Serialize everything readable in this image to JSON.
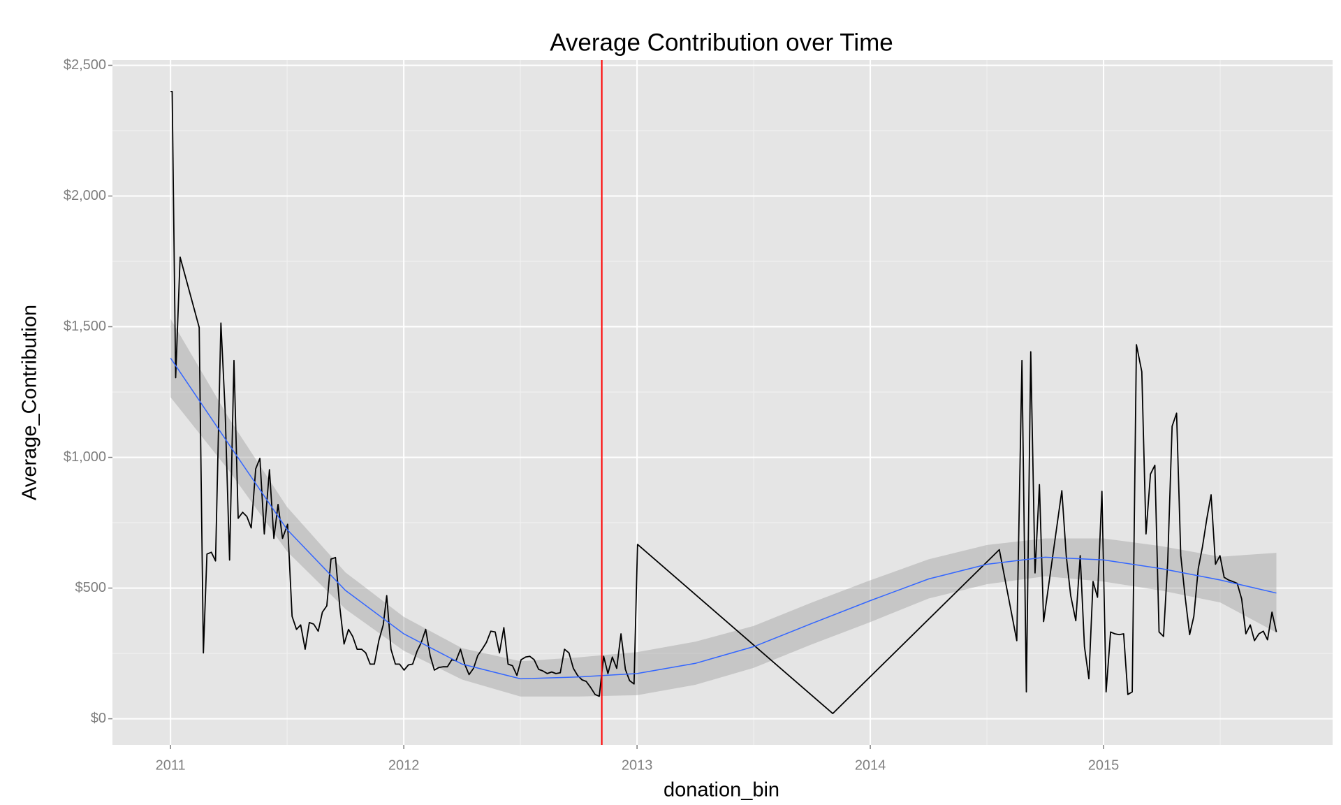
{
  "chart_data": {
    "type": "line",
    "title": "Average Contribution over Time",
    "x_label": "donation_bin",
    "y_label": "Average_Contribution",
    "xlim": [
      2010.751,
      2015.982
    ],
    "ylim": [
      -100,
      2520
    ],
    "xticks": [
      2011,
      2012,
      2013,
      2014,
      2015
    ],
    "yticks": [
      {
        "value": 0,
        "label": "$0"
      },
      {
        "value": 500,
        "label": "$500"
      },
      {
        "value": 1000,
        "label": "$1,000"
      },
      {
        "value": 1500,
        "label": "$1,500"
      },
      {
        "value": 2000,
        "label": "$2,000"
      },
      {
        "value": 2500,
        "label": "$2,500"
      }
    ],
    "xminorticks": [
      2011.5,
      2012.5,
      2013.5,
      2014.5,
      2015.5
    ],
    "yminorticks": [
      250,
      750,
      1250,
      1750,
      2250
    ],
    "grid": true,
    "panel_color": "#e5e5e5",
    "x": [
      2011.0,
      2011.007,
      2011.022,
      2011.041,
      2011.123,
      2011.141,
      2011.156,
      2011.175,
      2011.193,
      2011.216,
      2011.234,
      2011.253,
      2011.272,
      2011.29,
      2011.309,
      2011.327,
      2011.346,
      2011.365,
      2011.383,
      2011.402,
      2011.424,
      2011.443,
      2011.461,
      2011.48,
      2011.502,
      2011.521,
      2011.54,
      2011.558,
      2011.577,
      2011.595,
      2011.614,
      2011.633,
      2011.651,
      2011.67,
      2011.688,
      2011.707,
      2011.726,
      2011.744,
      2011.763,
      2011.781,
      2011.8,
      2011.819,
      2011.837,
      2011.856,
      2011.874,
      2011.893,
      2011.912,
      2011.927,
      2011.945,
      2011.964,
      2011.982,
      2012.001,
      2012.02,
      2012.038,
      2012.057,
      2012.075,
      2012.094,
      2012.113,
      2012.131,
      2012.15,
      2012.168,
      2012.187,
      2012.206,
      2012.224,
      2012.243,
      2012.261,
      2012.28,
      2012.299,
      2012.317,
      2012.336,
      2012.354,
      2012.373,
      2012.392,
      2012.41,
      2012.429,
      2012.447,
      2012.466,
      2012.485,
      2012.503,
      2012.522,
      2012.54,
      2012.559,
      2012.578,
      2012.596,
      2012.615,
      2012.634,
      2012.652,
      2012.671,
      2012.689,
      2012.708,
      2012.727,
      2012.745,
      2012.764,
      2012.782,
      2012.801,
      2012.82,
      2012.838,
      2012.857,
      2012.875,
      2012.894,
      2012.913,
      2012.931,
      2012.95,
      2012.968,
      2012.987,
      2013.002,
      2013.839,
      2014.553,
      2014.628,
      2014.65,
      2014.669,
      2014.688,
      2014.706,
      2014.725,
      2014.743,
      2014.821,
      2014.84,
      2014.859,
      2014.881,
      2014.9,
      2014.918,
      2014.937,
      2014.955,
      2014.974,
      2014.993,
      2015.011,
      2015.03,
      2015.048,
      2015.067,
      2015.086,
      2015.104,
      2015.123,
      2015.141,
      2015.164,
      2015.182,
      2015.201,
      2015.22,
      2015.238,
      2015.257,
      2015.275,
      2015.294,
      2015.313,
      2015.331,
      2015.35,
      2015.369,
      2015.387,
      2015.406,
      2015.424,
      2015.443,
      2015.461,
      2015.48,
      2015.499,
      2015.517,
      2015.536,
      2015.554,
      2015.573,
      2015.592,
      2015.61,
      2015.629,
      2015.647,
      2015.666,
      2015.685,
      2015.703,
      2015.722,
      2015.741
    ],
    "series": [
      {
        "color": "#000000",
        "values": [
          2400,
          2400,
          1305,
          1766,
          1497,
          252,
          630,
          637,
          604,
          1514,
          1182,
          607,
          1371,
          767,
          790,
          774,
          730,
          956,
          996,
          707,
          953,
          690,
          820,
          690,
          744,
          392,
          342,
          359,
          266,
          368,
          362,
          335,
          408,
          432,
          611,
          617,
          425,
          286,
          342,
          315,
          266,
          266,
          252,
          209,
          209,
          299,
          359,
          471,
          266,
          209,
          209,
          186,
          206,
          209,
          259,
          292,
          342,
          242,
          186,
          196,
          199,
          199,
          226,
          222,
          266,
          209,
          169,
          193,
          242,
          266,
          292,
          335,
          332,
          252,
          349,
          209,
          203,
          166,
          226,
          236,
          239,
          226,
          189,
          183,
          173,
          179,
          173,
          176,
          266,
          252,
          193,
          166,
          149,
          143,
          120,
          93,
          86,
          239,
          173,
          236,
          193,
          325,
          189,
          146,
          133,
          667,
          20,
          647,
          299,
          1371,
          103,
          1404,
          558,
          896,
          372,
          873,
          624,
          471,
          375,
          624,
          276,
          153,
          525,
          465,
          870,
          103,
          332,
          325,
          322,
          325,
          93,
          103,
          1431,
          1328,
          707,
          936,
          970,
          332,
          315,
          601,
          1119,
          1169,
          624,
          465,
          322,
          392,
          574,
          657,
          767,
          857,
          591,
          624,
          541,
          531,
          525,
          518,
          458,
          325,
          359,
          299,
          325,
          335,
          302,
          408,
          332
        ]
      }
    ],
    "smooth": {
      "color": "#3366ff",
      "band_color": "#999999",
      "x": [
        2011.0,
        2011.25,
        2011.5,
        2011.75,
        2012.0,
        2012.25,
        2012.5,
        2012.75,
        2013.0,
        2013.25,
        2013.5,
        2013.75,
        2014.0,
        2014.25,
        2014.5,
        2014.75,
        2015.0,
        2015.25,
        2015.5,
        2015.741
      ],
      "values": [
        1380,
        1050,
        724,
        491,
        325,
        209,
        153,
        160,
        173,
        212,
        276,
        365,
        452,
        535,
        591,
        618,
        608,
        574,
        531,
        481
      ],
      "lower": [
        1230,
        950,
        640,
        420,
        260,
        150,
        85,
        85,
        90,
        130,
        195,
        285,
        370,
        460,
        515,
        545,
        525,
        490,
        445,
        330
      ],
      "upper": [
        1530,
        1150,
        810,
        560,
        390,
        270,
        220,
        235,
        255,
        295,
        355,
        445,
        530,
        610,
        665,
        690,
        690,
        660,
        620,
        635
      ]
    },
    "vline": {
      "x": 2012.849,
      "color": "#ff0000"
    }
  }
}
